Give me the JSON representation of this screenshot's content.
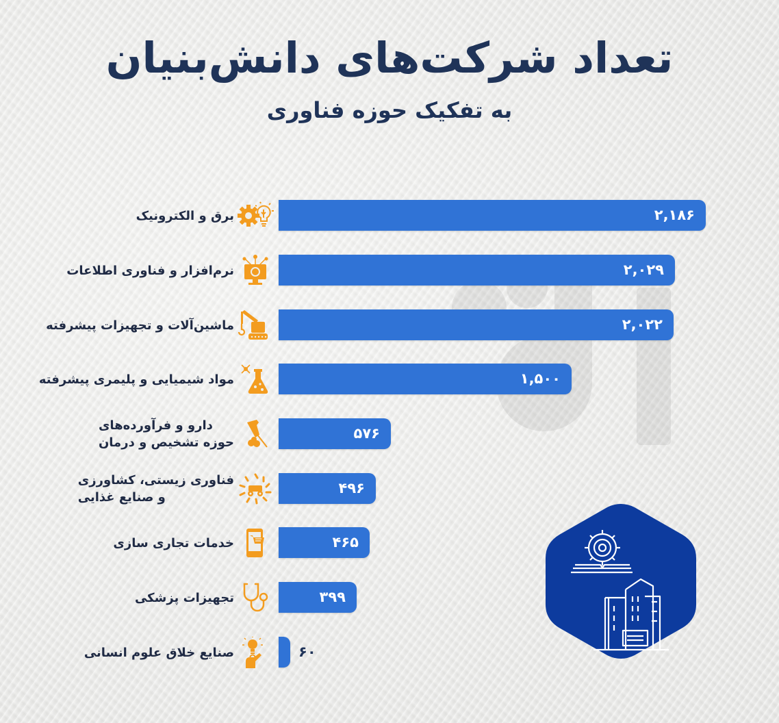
{
  "header": {
    "title": "تعداد شرکت‌های دانش‌بنیان",
    "subtitle": "به تفکیک حوزه فناوری"
  },
  "colors": {
    "bar": "#3073d6",
    "icon": "#f39c1f",
    "title": "#1f3358",
    "hexagon": "#0d3b9e"
  },
  "items": [
    {
      "label_line1": "برق و الکترونیک",
      "label_line2": "",
      "value_label": "۲,۱۸۶",
      "icon": "gear-lightbulb-icon"
    },
    {
      "label_line1": "نرم‌افزار و فناوری اطلاعات",
      "label_line2": "",
      "value_label": "۲,۰۲۹",
      "icon": "monitor-network-icon"
    },
    {
      "label_line1": "ماشین‌آلات و تجهیزات پیشرفته",
      "label_line2": "",
      "value_label": "۲,۰۲۲",
      "icon": "robotic-crane-icon"
    },
    {
      "label_line1": "مواد شیمیایی و پلیمری پیشرفته",
      "label_line2": "",
      "value_label": "۱,۵۰۰",
      "icon": "flask-molecule-icon"
    },
    {
      "label_line1": "دارو و فرآورده‌های",
      "label_line2": "حوزه تشخیص و درمان",
      "value_label": "۵۷۶",
      "icon": "syringe-pills-icon"
    },
    {
      "label_line1": "فناوری زیستی، کشاورزی",
      "label_line2": "و صنایع غذایی",
      "value_label": "۴۹۶",
      "icon": "tractor-wheat-icon"
    },
    {
      "label_line1": "خدمات تجاری سازی",
      "label_line2": "",
      "value_label": "۴۶۵",
      "icon": "mobile-cart-icon"
    },
    {
      "label_line1": "تجهیزات پزشکی",
      "label_line2": "",
      "value_label": "۳۹۹",
      "icon": "stethoscope-icon"
    },
    {
      "label_line1": "صنایع خلاق علوم انسانی",
      "label_line2": "",
      "value_label": "۶۰",
      "icon": "idea-person-icon"
    }
  ],
  "badge": {
    "icon": "buildings-gear-book-icon"
  },
  "chart_data": {
    "type": "bar",
    "orientation": "horizontal",
    "title": "تعداد شرکت‌های دانش‌بنیان",
    "subtitle": "به تفکیک حوزه فناوری",
    "xlabel": "",
    "ylabel": "",
    "categories": [
      "برق و الکترونیک",
      "نرم‌افزار و فناوری اطلاعات",
      "ماشین‌آلات و تجهیزات پیشرفته",
      "مواد شیمیایی و پلیمری پیشرفته",
      "دارو و فرآورده‌های حوزه تشخیص و درمان",
      "فناوری زیستی، کشاورزی و صنایع غذایی",
      "خدمات تجاری سازی",
      "تجهیزات پزشکی",
      "صنایع خلاق علوم انسانی"
    ],
    "values": [
      2186,
      2029,
      2022,
      1500,
      576,
      496,
      465,
      399,
      60
    ],
    "data_labels": true,
    "grid": false,
    "legend": null,
    "xlim": [
      0,
      2186
    ]
  }
}
